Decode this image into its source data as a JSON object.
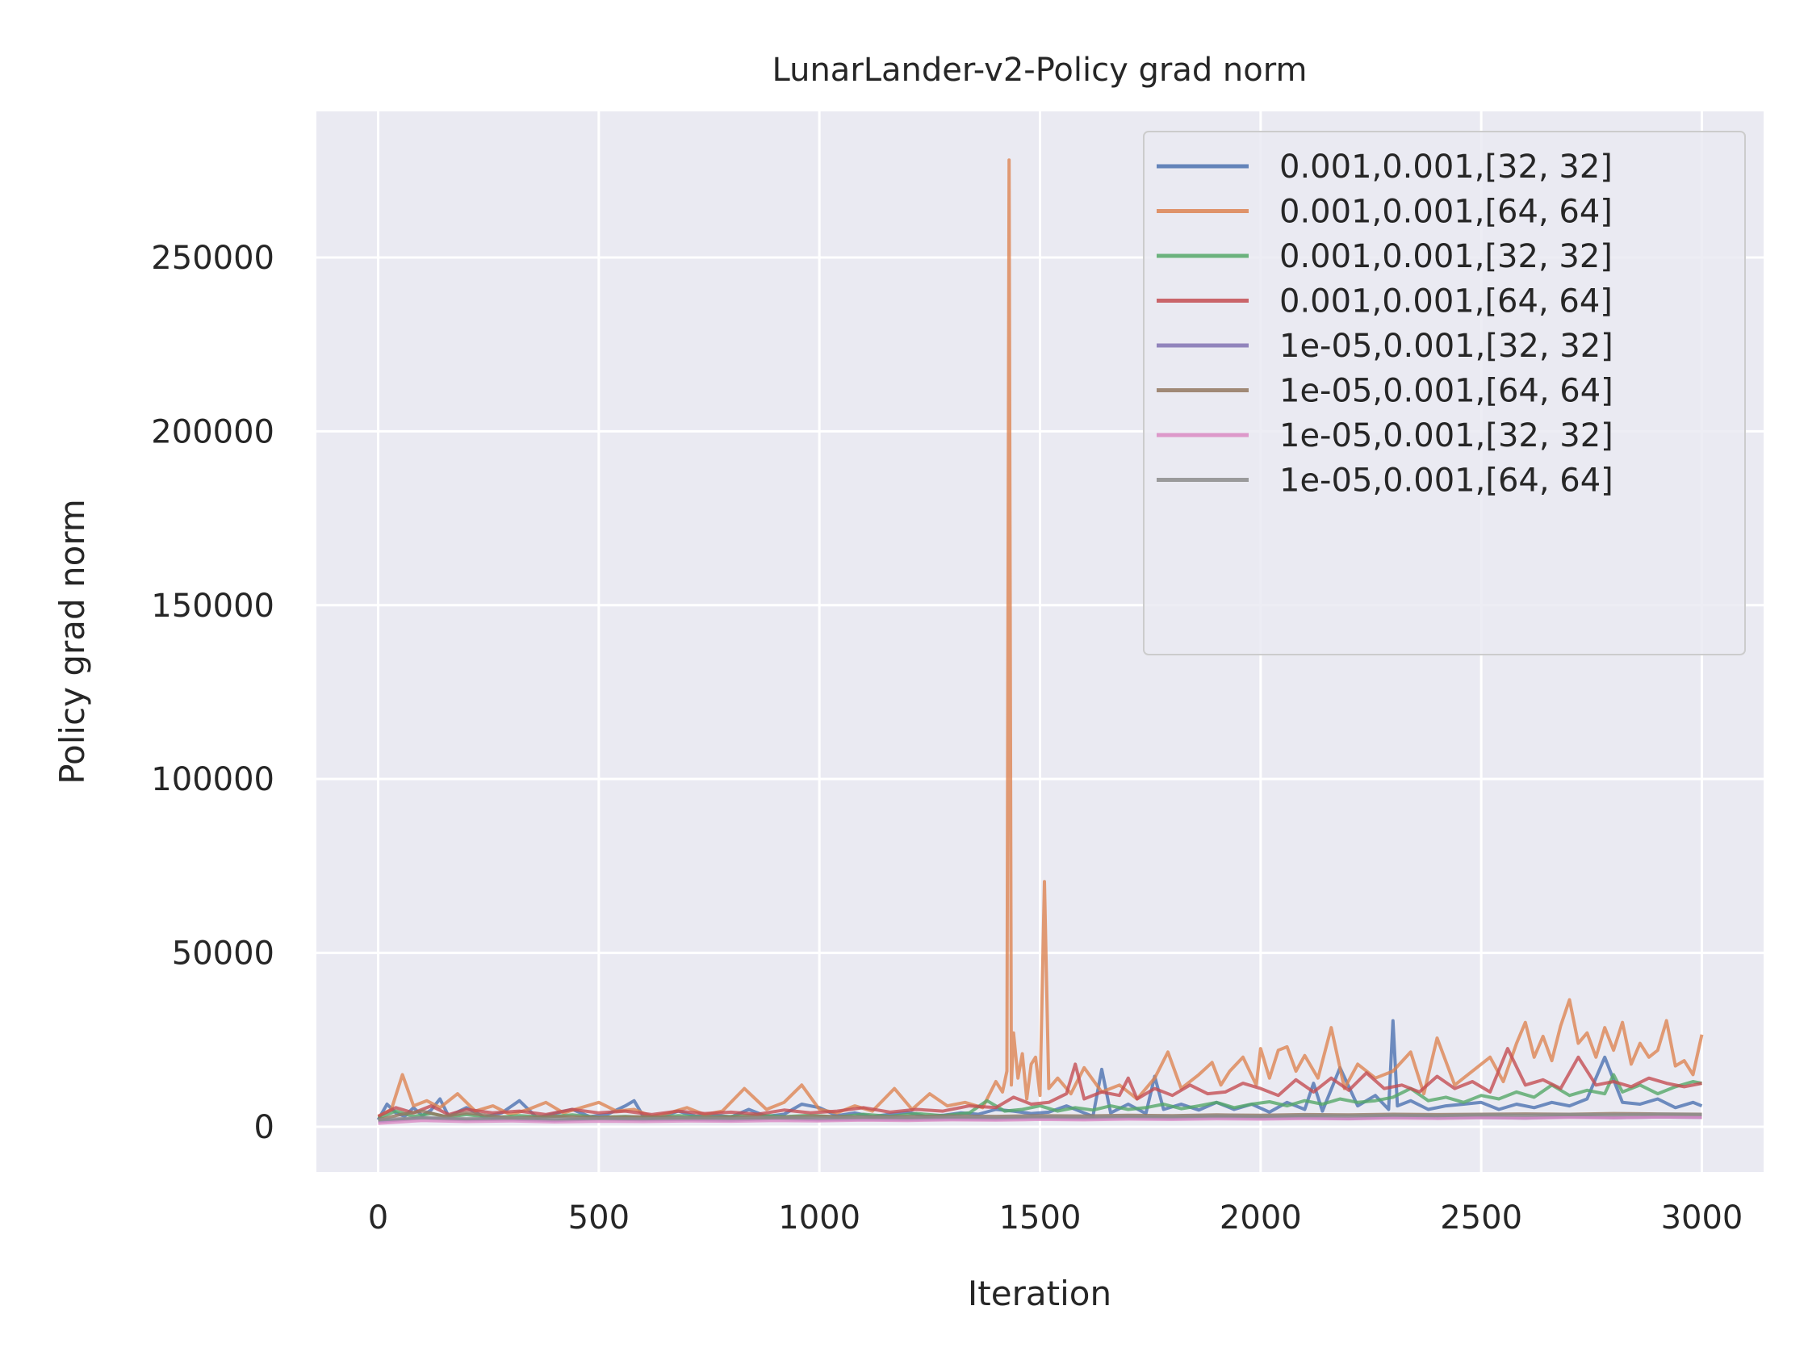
{
  "chart_data": {
    "type": "line",
    "title": "LunarLander-v2-Policy grad norm",
    "xlabel": "Iteration",
    "ylabel": "Policy grad norm",
    "xlim": [
      -140,
      3140
    ],
    "ylim": [
      -13000,
      292000
    ],
    "xticks": [
      0,
      500,
      1000,
      1500,
      2000,
      2500,
      3000
    ],
    "xtick_labels": [
      "0",
      "500",
      "1000",
      "1500",
      "2000",
      "2500",
      "3000"
    ],
    "yticks": [
      0,
      50000,
      100000,
      150000,
      200000,
      250000
    ],
    "ytick_labels": [
      "0",
      "50000",
      "100000",
      "150000",
      "200000",
      "250000"
    ],
    "grid": true,
    "legend_position": "top-right",
    "colors": [
      "#4c72b0",
      "#dd8452",
      "#55a868",
      "#c44e52",
      "#8172b3",
      "#937860",
      "#da8bc3",
      "#8c8c8c"
    ],
    "series": [
      {
        "name": "0.001,0.001,[32, 32]",
        "color": "#4c72b0",
        "x": [
          0,
          20,
          40,
          60,
          80,
          100,
          120,
          140,
          160,
          200,
          240,
          280,
          320,
          360,
          400,
          440,
          480,
          520,
          560,
          580,
          600,
          640,
          680,
          720,
          760,
          800,
          840,
          880,
          920,
          960,
          1000,
          1040,
          1080,
          1120,
          1160,
          1200,
          1240,
          1280,
          1320,
          1360,
          1400,
          1440,
          1480,
          1520,
          1560,
          1600,
          1620,
          1640,
          1660,
          1700,
          1740,
          1760,
          1780,
          1820,
          1860,
          1900,
          1940,
          1980,
          2020,
          2060,
          2100,
          2120,
          2140,
          2180,
          2220,
          2260,
          2290,
          2300,
          2310,
          2340,
          2380,
          2420,
          2460,
          2500,
          2540,
          2580,
          2620,
          2660,
          2700,
          2740,
          2780,
          2820,
          2860,
          2900,
          2940,
          2980,
          3000
        ],
        "values": [
          2000,
          6500,
          4000,
          3000,
          5500,
          3200,
          4800,
          8000,
          3000,
          5500,
          2800,
          4000,
          7500,
          2600,
          3800,
          5000,
          2900,
          3600,
          6000,
          7500,
          3200,
          2800,
          4500,
          3000,
          3400,
          2800,
          5000,
          3000,
          3600,
          6500,
          5500,
          3200,
          4000,
          2900,
          3600,
          4200,
          3000,
          3300,
          4000,
          3600,
          5000,
          4500,
          3800,
          4200,
          6000,
          4000,
          3000,
          16500,
          4000,
          6500,
          3800,
          14500,
          5000,
          6500,
          4800,
          7000,
          5000,
          6500,
          4200,
          7000,
          5000,
          12500,
          4500,
          17000,
          6000,
          9000,
          5000,
          30500,
          6000,
          7500,
          5000,
          6000,
          6500,
          7000,
          5000,
          6500,
          5500,
          7000,
          6000,
          8000,
          20000,
          7000,
          6500,
          8000,
          5500,
          7000,
          6000
        ]
      },
      {
        "name": "0.001,0.001,[64, 64]",
        "color": "#dd8452",
        "x": [
          0,
          30,
          55,
          80,
          110,
          140,
          180,
          220,
          260,
          300,
          340,
          380,
          420,
          460,
          500,
          540,
          580,
          620,
          660,
          700,
          740,
          780,
          830,
          880,
          920,
          960,
          1000,
          1040,
          1080,
          1120,
          1170,
          1210,
          1250,
          1290,
          1330,
          1370,
          1400,
          1415,
          1425,
          1430,
          1435,
          1440,
          1450,
          1460,
          1470,
          1480,
          1490,
          1500,
          1510,
          1520,
          1540,
          1570,
          1600,
          1640,
          1680,
          1720,
          1760,
          1790,
          1820,
          1860,
          1890,
          1910,
          1930,
          1960,
          1990,
          2000,
          2020,
          2040,
          2060,
          2080,
          2100,
          2130,
          2160,
          2190,
          2220,
          2260,
          2300,
          2340,
          2370,
          2400,
          2440,
          2480,
          2520,
          2550,
          2580,
          2600,
          2620,
          2640,
          2660,
          2680,
          2700,
          2720,
          2740,
          2760,
          2780,
          2800,
          2820,
          2840,
          2860,
          2880,
          2900,
          2920,
          2940,
          2960,
          2980,
          3000
        ],
        "values": [
          3000,
          5000,
          15000,
          6000,
          7500,
          5500,
          9500,
          4500,
          6000,
          3500,
          5000,
          7000,
          4000,
          5500,
          7000,
          4500,
          5000,
          3000,
          4000,
          5500,
          3500,
          4500,
          11000,
          5000,
          7000,
          12000,
          5000,
          4000,
          6000,
          4500,
          11000,
          5000,
          9500,
          6000,
          7000,
          5500,
          13000,
          10000,
          16000,
          278000,
          12000,
          27000,
          14000,
          21000,
          8000,
          18000,
          20000,
          9000,
          70500,
          11000,
          14000,
          9500,
          17000,
          10000,
          12000,
          8000,
          14000,
          21500,
          11000,
          15000,
          18500,
          12000,
          16000,
          20000,
          12000,
          22500,
          14000,
          22000,
          23000,
          16000,
          20500,
          14000,
          28500,
          11000,
          18000,
          14000,
          16000,
          21500,
          9500,
          25500,
          12000,
          16000,
          20000,
          13000,
          24000,
          30000,
          20000,
          26000,
          19000,
          29000,
          36500,
          24000,
          27000,
          20000,
          28500,
          22000,
          30000,
          18000,
          24000,
          20000,
          22000,
          30500,
          17500,
          19000,
          15000,
          26500
        ]
      },
      {
        "name": "0.001,0.001,[32, 32]",
        "color": "#55a868",
        "x": [
          0,
          40,
          80,
          120,
          160,
          200,
          260,
          320,
          380,
          440,
          500,
          560,
          620,
          680,
          740,
          800,
          860,
          920,
          980,
          1040,
          1100,
          1160,
          1220,
          1280,
          1340,
          1380,
          1420,
          1460,
          1500,
          1540,
          1580,
          1620,
          1660,
          1700,
          1740,
          1780,
          1820,
          1860,
          1900,
          1940,
          1980,
          2020,
          2060,
          2100,
          2140,
          2180,
          2220,
          2260,
          2300,
          2340,
          2380,
          2420,
          2460,
          2500,
          2540,
          2580,
          2620,
          2660,
          2700,
          2740,
          2780,
          2800,
          2820,
          2860,
          2900,
          2940,
          2980,
          3000
        ],
        "values": [
          2500,
          4500,
          3000,
          3800,
          2800,
          3500,
          2600,
          3200,
          2800,
          3400,
          2700,
          3000,
          2600,
          3200,
          2800,
          3000,
          3400,
          2900,
          3300,
          2800,
          3600,
          3000,
          3800,
          3200,
          4000,
          7500,
          4500,
          5000,
          6000,
          4500,
          5500,
          4800,
          6000,
          5000,
          5500,
          6500,
          5200,
          6000,
          7000,
          5500,
          6500,
          7200,
          6000,
          7500,
          6500,
          8000,
          7000,
          7500,
          8500,
          11000,
          7500,
          8500,
          7000,
          9000,
          8000,
          10000,
          8500,
          12000,
          9000,
          10500,
          9500,
          15000,
          10000,
          12000,
          9500,
          11500,
          13000,
          12500
        ]
      },
      {
        "name": "0.001,0.001,[64, 64]",
        "color": "#c44e52",
        "x": [
          0,
          40,
          80,
          120,
          160,
          200,
          260,
          320,
          380,
          440,
          500,
          560,
          620,
          680,
          740,
          800,
          860,
          920,
          980,
          1040,
          1100,
          1160,
          1220,
          1280,
          1340,
          1400,
          1440,
          1480,
          1520,
          1560,
          1580,
          1600,
          1640,
          1680,
          1700,
          1720,
          1760,
          1800,
          1840,
          1880,
          1920,
          1960,
          2000,
          2040,
          2080,
          2120,
          2160,
          2200,
          2240,
          2280,
          2320,
          2360,
          2400,
          2440,
          2480,
          2520,
          2560,
          2600,
          2640,
          2680,
          2720,
          2760,
          2800,
          2840,
          2880,
          2920,
          2960,
          3000
        ],
        "values": [
          3000,
          5500,
          4000,
          6000,
          3500,
          5000,
          4000,
          4500,
          3500,
          5000,
          4000,
          4500,
          3500,
          4500,
          3800,
          4200,
          3600,
          4800,
          4000,
          4500,
          5500,
          4200,
          5000,
          4500,
          6000,
          5500,
          8500,
          6500,
          7000,
          9500,
          18000,
          8000,
          10000,
          9000,
          14000,
          8000,
          11000,
          9000,
          12000,
          9500,
          10000,
          12500,
          11000,
          9000,
          13500,
          10000,
          14000,
          10500,
          15500,
          11000,
          12000,
          10000,
          14500,
          11000,
          13000,
          10000,
          22500,
          12000,
          13500,
          11000,
          20000,
          12000,
          13000,
          11500,
          14000,
          12500,
          11500,
          12500
        ]
      },
      {
        "name": "1e-05,0.001,[32, 32]",
        "color": "#8172b3",
        "x": [
          0,
          100,
          200,
          300,
          400,
          500,
          600,
          700,
          800,
          900,
          1000,
          1100,
          1200,
          1300,
          1400,
          1500,
          1600,
          1700,
          1800,
          1900,
          2000,
          2100,
          2200,
          2300,
          2400,
          2500,
          2600,
          2700,
          2800,
          2900,
          3000
        ],
        "values": [
          1500,
          2500,
          2000,
          2200,
          1800,
          2300,
          2000,
          2100,
          1900,
          2400,
          2000,
          2200,
          2100,
          2300,
          2200,
          2500,
          2300,
          2600,
          2400,
          2700,
          2500,
          2600,
          2400,
          2800,
          2600,
          2700,
          2500,
          2900,
          2600,
          2800,
          2700
        ]
      },
      {
        "name": "1e-05,0.001,[64, 64]",
        "color": "#937860",
        "x": [
          0,
          50,
          100,
          150,
          200,
          300,
          400,
          500,
          600,
          700,
          800,
          900,
          1000,
          1100,
          1200,
          1300,
          1400,
          1500,
          1600,
          1700,
          1800,
          1900,
          2000,
          2100,
          2200,
          2300,
          2400,
          2500,
          2600,
          2700,
          2800,
          2900,
          3000
        ],
        "values": [
          2000,
          3500,
          4500,
          3000,
          4000,
          2500,
          3000,
          2700,
          2900,
          2600,
          2800,
          2700,
          3000,
          2800,
          2900,
          3100,
          3000,
          3200,
          3100,
          3300,
          3200,
          3400,
          3300,
          3500,
          3400,
          3600,
          3500,
          3600,
          3700,
          3600,
          3800,
          3700,
          3600
        ]
      },
      {
        "name": "1e-05,0.001,[32, 32]",
        "color": "#da8bc3",
        "x": [
          0,
          100,
          200,
          300,
          400,
          500,
          600,
          700,
          800,
          900,
          1000,
          1100,
          1200,
          1300,
          1400,
          1500,
          1600,
          1700,
          1800,
          1900,
          2000,
          2100,
          2200,
          2300,
          2400,
          2500,
          2600,
          2700,
          2800,
          2900,
          3000
        ],
        "values": [
          1000,
          1800,
          1500,
          1700,
          1400,
          1600,
          1500,
          1700,
          1600,
          1800,
          1700,
          1900,
          1800,
          2000,
          1900,
          2100,
          2000,
          2200,
          2100,
          2300,
          2200,
          2400,
          2300,
          2500,
          2400,
          2600,
          2500,
          2700,
          2600,
          2800,
          2700
        ]
      },
      {
        "name": "1e-05,0.001,[64, 64]",
        "color": "#8c8c8c",
        "x": [
          0,
          100,
          200,
          300,
          400,
          500,
          600,
          700,
          800,
          900,
          1000,
          1100,
          1200,
          1300,
          1400,
          1500,
          1600,
          1700,
          1800,
          1900,
          2000,
          2100,
          2200,
          2300,
          2400,
          2500,
          2600,
          2700,
          2800,
          2900,
          3000
        ],
        "values": [
          2000,
          2600,
          2300,
          2500,
          2200,
          2400,
          2300,
          2500,
          2400,
          2600,
          2500,
          2700,
          2600,
          2800,
          2700,
          2900,
          2800,
          3000,
          2900,
          3100,
          3000,
          3200,
          3100,
          3300,
          3200,
          3400,
          3300,
          3500,
          3400,
          3600,
          3500
        ]
      }
    ]
  }
}
